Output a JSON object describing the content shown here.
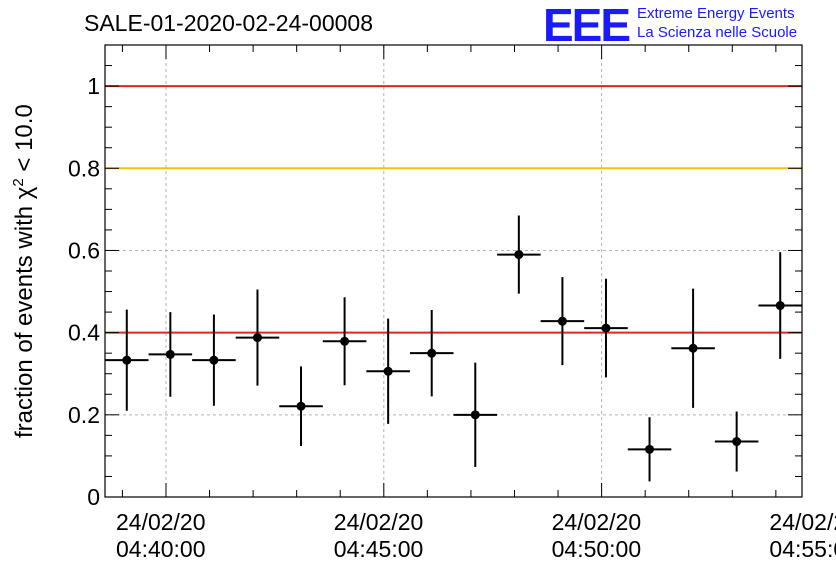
{
  "title": "SALE-01-2020-02-24-00008",
  "logo": {
    "mark": "EEE",
    "line1": "Extreme Energy Events",
    "line2": "La Scienza nelle Scuole"
  },
  "chart_data": {
    "type": "scatter",
    "title": "SALE-01-2020-02-24-00008",
    "ylabel": "fraction of events with χ² < 10.0",
    "ylabel_parts": [
      "fraction of events with ",
      "χ",
      "2",
      " < 10.0"
    ],
    "xlabel": "",
    "ylim": [
      0,
      1.1
    ],
    "xlim": [
      "2020-02-24 04:38:36",
      "2020-02-24 04:54:36"
    ],
    "grid": true,
    "x_ticks": [
      {
        "x": "2020-02-24 04:40:00",
        "date": "24/02/20",
        "time": "04:40:00"
      },
      {
        "x": "2020-02-24 04:45:00",
        "date": "24/02/20",
        "time": "04:45:00"
      },
      {
        "x": "2020-02-24 04:50:00",
        "date": "24/02/20",
        "time": "04:50:00"
      },
      {
        "x": "2020-02-24 04:55:00",
        "date": "24/02/2",
        "time": "04:55:0"
      }
    ],
    "y_ticks": [
      {
        "v": 0,
        "label": "0"
      },
      {
        "v": 0.2,
        "label": "0.2"
      },
      {
        "v": 0.4,
        "label": "0.4"
      },
      {
        "v": 0.6,
        "label": "0.6"
      },
      {
        "v": 0.8,
        "label": "0.8"
      },
      {
        "v": 1.0,
        "label": "1"
      }
    ],
    "reference_lines": [
      {
        "y": 1.0,
        "color": "#e8231f"
      },
      {
        "y": 0.8,
        "color": "#f5c400"
      },
      {
        "y": 0.4,
        "color": "#e8231f"
      }
    ],
    "series": [
      {
        "marker_color": "#000000",
        "points": [
          {
            "x": "2020-02-24 04:39:06",
            "y": 0.333,
            "xerr_s": 30,
            "yerr": 0.123
          },
          {
            "x": "2020-02-24 04:40:06",
            "y": 0.347,
            "xerr_s": 30,
            "yerr": 0.103
          },
          {
            "x": "2020-02-24 04:41:06",
            "y": 0.333,
            "xerr_s": 30,
            "yerr": 0.111
          },
          {
            "x": "2020-02-24 04:42:06",
            "y": 0.388,
            "xerr_s": 30,
            "yerr": 0.117
          },
          {
            "x": "2020-02-24 04:43:06",
            "y": 0.221,
            "xerr_s": 30,
            "yerr": 0.097
          },
          {
            "x": "2020-02-24 04:44:06",
            "y": 0.379,
            "xerr_s": 30,
            "yerr": 0.107
          },
          {
            "x": "2020-02-24 04:45:06",
            "y": 0.306,
            "xerr_s": 30,
            "yerr": 0.128
          },
          {
            "x": "2020-02-24 04:46:06",
            "y": 0.35,
            "xerr_s": 30,
            "yerr": 0.105
          },
          {
            "x": "2020-02-24 04:47:06",
            "y": 0.2,
            "xerr_s": 30,
            "yerr": 0.127
          },
          {
            "x": "2020-02-24 04:48:06",
            "y": 0.59,
            "xerr_s": 30,
            "yerr": 0.095
          },
          {
            "x": "2020-02-24 04:49:06",
            "y": 0.428,
            "xerr_s": 30,
            "yerr": 0.107
          },
          {
            "x": "2020-02-24 04:50:06",
            "y": 0.411,
            "xerr_s": 30,
            "yerr": 0.12
          },
          {
            "x": "2020-02-24 04:51:06",
            "y": 0.116,
            "xerr_s": 30,
            "yerr": 0.078
          },
          {
            "x": "2020-02-24 04:52:06",
            "y": 0.362,
            "xerr_s": 30,
            "yerr": 0.145
          },
          {
            "x": "2020-02-24 04:53:06",
            "y": 0.135,
            "xerr_s": 30,
            "yerr": 0.073
          },
          {
            "x": "2020-02-24 04:54:06",
            "y": 0.466,
            "xerr_s": 30,
            "yerr": 0.13
          }
        ]
      }
    ]
  }
}
